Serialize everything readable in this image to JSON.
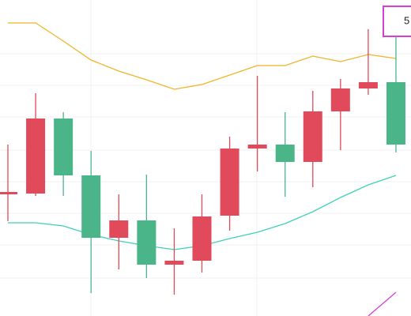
{
  "chart_data": {
    "type": "candlestick",
    "categories": [
      null,
      null,
      null,
      null,
      null,
      null,
      null,
      null,
      null,
      null,
      null,
      null,
      null,
      null,
      null
    ],
    "open": [
      154,
      155,
      250,
      178,
      99,
      121,
      65,
      70,
      127,
      212,
      217,
      195,
      259,
      288,
      296
    ],
    "high": [
      217,
      282,
      258,
      209,
      154,
      179,
      111,
      154,
      227,
      304,
      258,
      285,
      300,
      363,
      368
    ],
    "low": [
      120,
      152,
      152,
      29,
      59,
      48,
      27,
      55,
      108,
      183,
      151,
      163,
      210,
      280,
      207
    ],
    "close": [
      157,
      250,
      178,
      99,
      121,
      65,
      70,
      126,
      212,
      217,
      195,
      259,
      288,
      296,
      217
    ],
    "up_color": "#e04a5a",
    "down_color": "#4bb58a",
    "series": [
      {
        "color": "#f0b429",
        "values": [
          371,
          371,
          348,
          324,
          310,
          299,
          287,
          293,
          305,
          317,
          317,
          329,
          322,
          331,
          326
        ]
      },
      {
        "color": "#3fd1b8",
        "values": [
          118,
          118,
          114,
          103,
          95,
          89,
          84,
          89,
          98,
          106,
          117,
          132,
          150,
          166,
          178
        ]
      },
      {
        "color": "#d63fd6",
        "values": [
          null,
          null,
          null,
          null,
          null,
          null,
          null,
          null,
          null,
          null,
          null,
          null,
          null,
          0,
          30
        ]
      }
    ],
    "ylim": [
      0,
      400
    ],
    "price_label": "5",
    "price_label_color": "#d63fd6"
  }
}
